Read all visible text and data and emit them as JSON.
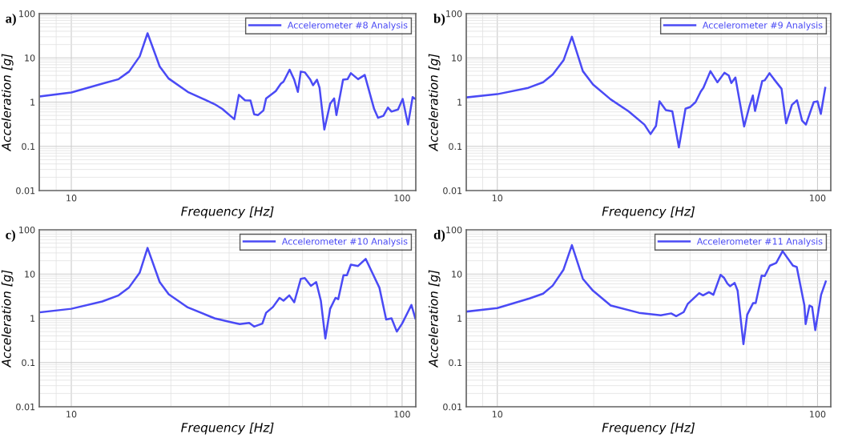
{
  "chart_data": [
    {
      "type": "line",
      "title": "a)",
      "xlabel": "Frequency [Hz]",
      "ylabel": "Acceleration [g]",
      "log": "xy",
      "grid": true,
      "legend": "top right",
      "marker": "none",
      "line_style": "solid",
      "xlim": [
        8,
        110
      ],
      "xticks": [
        10,
        100
      ],
      "ylim": [
        0.01,
        100
      ],
      "yticks": [
        0.01,
        0.1,
        1,
        10,
        100
      ],
      "series": [
        {
          "name": "Accelerometer #8 Analysis",
          "color": "#4a4af5",
          "x": [
            8.08,
            10,
            12.4,
            13.9,
            14.95,
            16.1,
            17.0,
            18.5,
            19.7,
            22.5,
            27.1,
            28.6,
            31.1,
            32.1,
            33.5,
            34.8,
            35.7,
            36.7,
            38.1,
            38.8,
            41.5,
            43.0,
            43.8,
            45.7,
            47.2,
            48.4,
            49.4,
            50.8,
            52.8,
            53.8,
            55.3,
            56.3,
            58.2,
            60.6,
            62.3,
            63.3,
            66.3,
            68.4,
            70.0,
            73.6,
            77.1,
            82.3,
            84.6,
            87.8,
            90.6,
            92.9,
            97.2,
            100.4,
            104.2,
            107.6,
            109.6
          ],
          "values": [
            1.35,
            1.65,
            2.6,
            3.3,
            4.9,
            10.8,
            36,
            6.4,
            3.4,
            1.7,
            0.9,
            0.7,
            0.41,
            1.46,
            1.1,
            1.09,
            0.53,
            0.51,
            0.65,
            1.21,
            1.77,
            2.6,
            2.9,
            5.4,
            3.2,
            1.7,
            4.9,
            4.7,
            3.2,
            2.4,
            3.2,
            2.1,
            0.24,
            0.92,
            1.21,
            0.51,
            3.2,
            3.3,
            4.5,
            3.3,
            4.1,
            0.7,
            0.44,
            0.49,
            0.75,
            0.61,
            0.68,
            1.18,
            0.31,
            1.3,
            1.18
          ]
        }
      ]
    },
    {
      "type": "line",
      "title": "b)",
      "xlabel": "Frequency [Hz]",
      "ylabel": "Acceleration [g]",
      "log": "xy",
      "grid": true,
      "legend": "top right",
      "marker": "none",
      "line_style": "solid",
      "xlim": [
        8,
        110
      ],
      "xticks": [
        10,
        100
      ],
      "ylim": [
        0.01,
        100
      ],
      "yticks": [
        0.01,
        0.1,
        1,
        10,
        100
      ],
      "series": [
        {
          "name": "Accelerometer #9 Analysis",
          "color": "#4a4af5",
          "x": [
            8.04,
            10,
            12.5,
            13.9,
            14.9,
            16.1,
            17.1,
            18.5,
            19.9,
            22.6,
            25.7,
            28.8,
            30.1,
            31.3,
            32.1,
            33.6,
            35.2,
            36.9,
            38.7,
            40.1,
            41.6,
            43.2,
            44.0,
            46.3,
            48.7,
            51.2,
            52.8,
            53.8,
            55.4,
            59.0,
            61.3,
            62.8,
            63.8,
            67.2,
            68.4,
            70.8,
            73.1,
            77.2,
            79.8,
            83.2,
            86.3,
            89.5,
            92.0,
            97.3,
            100,
            102.4,
            105.7
          ],
          "values": [
            1.28,
            1.51,
            2.1,
            2.8,
            4.2,
            8.8,
            30,
            5.0,
            2.5,
            1.15,
            0.62,
            0.31,
            0.19,
            0.29,
            1.04,
            0.66,
            0.62,
            0.095,
            0.71,
            0.78,
            1.0,
            1.74,
            2.1,
            5.0,
            2.8,
            4.6,
            4.0,
            2.7,
            3.6,
            0.28,
            0.81,
            1.41,
            0.63,
            3.0,
            3.1,
            4.5,
            3.3,
            2.0,
            0.33,
            0.87,
            1.1,
            0.38,
            0.31,
            1.0,
            1.04,
            0.54,
            2.1
          ]
        }
      ]
    },
    {
      "type": "line",
      "title": "c)",
      "xlabel": "Frequency [Hz]",
      "ylabel": "Acceleration [g]",
      "log": "xy",
      "grid": true,
      "legend": "top right",
      "marker": "none",
      "line_style": "solid",
      "xlim": [
        8,
        110
      ],
      "xticks": [
        10,
        100
      ],
      "ylim": [
        0.01,
        100
      ],
      "yticks": [
        0.01,
        0.1,
        1,
        10,
        100
      ],
      "series": [
        {
          "name": "Accelerometer #10 Analysis",
          "color": "#4a4af5",
          "x": [
            8.08,
            10,
            12.4,
            13.9,
            14.95,
            16.1,
            17.0,
            18.5,
            19.7,
            22.5,
            27.1,
            30.3,
            32.3,
            34.5,
            35.7,
            37.8,
            38.8,
            40.7,
            42.6,
            43.8,
            45.6,
            47.2,
            49.4,
            50.8,
            53.0,
            55.0,
            56.8,
            58.6,
            60.6,
            62.9,
            64.1,
            66.5,
            68.1,
            70.0,
            73.6,
            77.6,
            85.4,
            89.5,
            92.9,
            96.4,
            100,
            106.7,
            109.6
          ],
          "values": [
            1.37,
            1.64,
            2.4,
            3.3,
            5.0,
            10.8,
            39,
            6.6,
            3.5,
            1.76,
            1.0,
            0.82,
            0.74,
            0.79,
            0.65,
            0.76,
            1.33,
            1.8,
            2.9,
            2.5,
            3.3,
            2.3,
            7.8,
            8.1,
            5.4,
            6.6,
            2.5,
            0.35,
            1.64,
            2.9,
            2.7,
            9.4,
            9.4,
            16.3,
            15.2,
            22,
            4.9,
            0.94,
            1.0,
            0.5,
            0.76,
            2.0,
            1.0
          ]
        }
      ]
    },
    {
      "type": "line",
      "title": "d)",
      "xlabel": "Frequency [Hz]",
      "ylabel": "Acceleration [g]",
      "log": "xy",
      "grid": true,
      "legend": "top right",
      "marker": "none",
      "line_style": "solid",
      "xlim": [
        8,
        110
      ],
      "xticks": [
        10,
        100
      ],
      "ylim": [
        0.01,
        100
      ],
      "yticks": [
        0.01,
        0.1,
        1,
        10,
        100
      ],
      "series": [
        {
          "name": "Accelerometer #11 Analysis",
          "color": "#4a4af5",
          "x": [
            8.04,
            10,
            12.6,
            13.9,
            14.9,
            16.1,
            17.1,
            18.5,
            19.9,
            22.6,
            27.7,
            32.4,
            34.9,
            36.2,
            38.2,
            39.3,
            42.7,
            43.9,
            45.8,
            47.3,
            49.8,
            51.0,
            52.3,
            53.3,
            55.1,
            56.3,
            58.7,
            60.3,
            62.9,
            64.1,
            66.9,
            68.4,
            71.0,
            74.3,
            77.8,
            83.8,
            86.1,
            91.0,
            91.8,
            94.4,
            96.2,
            98.4,
            102.6,
            106.1
          ],
          "values": [
            1.42,
            1.7,
            2.8,
            3.6,
            5.5,
            12.6,
            45,
            7.8,
            4.2,
            1.95,
            1.33,
            1.17,
            1.29,
            1.12,
            1.38,
            2.1,
            3.7,
            3.3,
            3.9,
            3.4,
            9.6,
            8.3,
            6.1,
            5.3,
            6.3,
            4.2,
            0.26,
            1.2,
            2.2,
            2.2,
            9.2,
            9.0,
            15.5,
            17.8,
            33,
            15.5,
            14.5,
            1.95,
            0.74,
            1.95,
            1.8,
            0.54,
            3.4,
            6.8
          ]
        }
      ]
    }
  ]
}
